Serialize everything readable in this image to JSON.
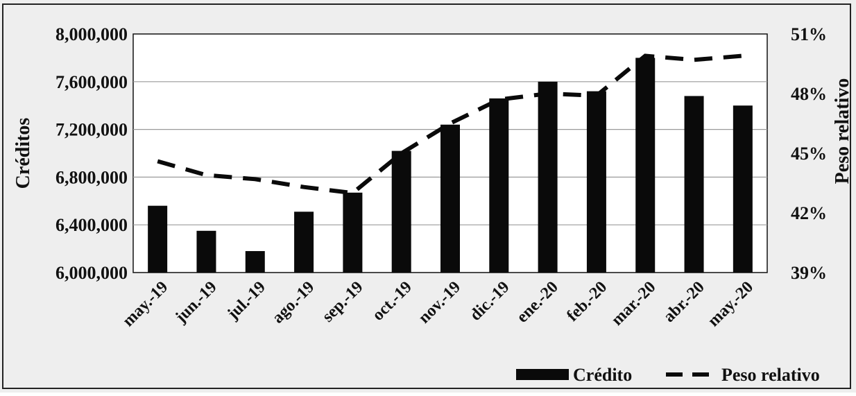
{
  "chart_data": {
    "type": "bar",
    "categories": [
      "may.-19",
      "jun.-19",
      "jul.-19",
      "ago.-19",
      "sep.-19",
      "oct.-19",
      "nov.-19",
      "dic.-19",
      "ene.-20",
      "feb.-20",
      "mar.-20",
      "abr.-20",
      "may.-20"
    ],
    "series": [
      {
        "name": "Crédito",
        "type": "bar",
        "axis": "left",
        "values": [
          6560000,
          6350000,
          6180000,
          6510000,
          6670000,
          7020000,
          7240000,
          7460000,
          7600000,
          7520000,
          7800000,
          7480000,
          7400000
        ]
      },
      {
        "name": "Peso relativo",
        "type": "line",
        "style": "dashed",
        "axis": "right",
        "values": [
          44.6,
          43.9,
          43.7,
          43.3,
          43.0,
          45.0,
          46.5,
          47.7,
          48.0,
          47.9,
          49.9,
          49.7,
          49.9
        ]
      }
    ],
    "ylabel": "Créditos",
    "y2label": "Peso relativo",
    "ylim": [
      6000000,
      8000000
    ],
    "y2lim": [
      39,
      51
    ],
    "yticks": [
      "6,000,000",
      "6,400,000",
      "6,800,000",
      "7,200,000",
      "7,600,000",
      "8,000,000"
    ],
    "y2ticks": [
      "39%",
      "42%",
      "45%",
      "48%",
      "51%"
    ],
    "grid": true,
    "legend_position": "bottom-right",
    "colors": {
      "bar": "#0a0a0a",
      "line": "#0a0a0a",
      "background": "#ffffff",
      "outer": "#eeeeee"
    }
  }
}
